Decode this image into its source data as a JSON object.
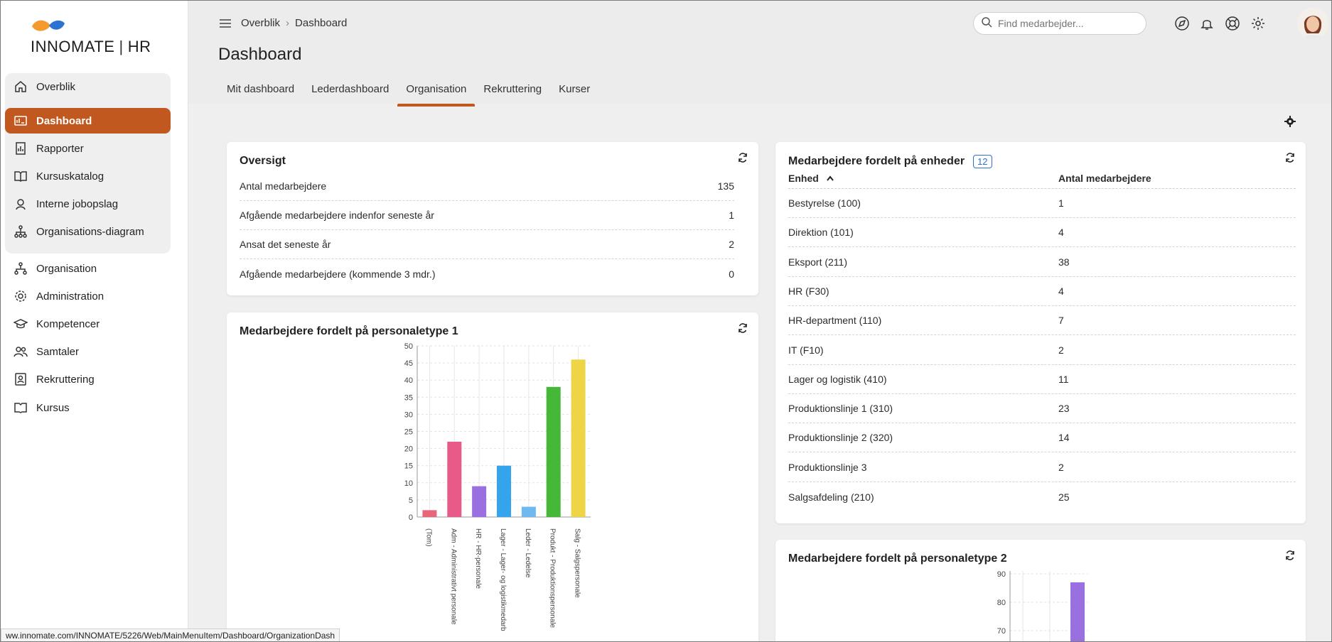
{
  "app": {
    "logo_text_left": "INNOMATE",
    "logo_text_right": "HR",
    "colors": {
      "accent": "#c1581f",
      "logo_orange": "#f59a2e",
      "logo_blue": "#2a73d0",
      "badge_blue": "#2a73d0"
    }
  },
  "sidebar": {
    "items": [
      {
        "label": "Overblik",
        "icon": "home-icon"
      },
      {
        "label": "Dashboard",
        "icon": "dashboard-icon"
      },
      {
        "label": "Rapporter",
        "icon": "report-icon"
      },
      {
        "label": "Kursuskatalog",
        "icon": "book-icon"
      },
      {
        "label": "Interne jobopslag",
        "icon": "job-icon"
      },
      {
        "label": "Organisations-diagram",
        "icon": "org-chart-icon"
      },
      {
        "label": "Organisation",
        "icon": "org-icon"
      },
      {
        "label": "Administration",
        "icon": "gear-icon"
      },
      {
        "label": "Kompetencer",
        "icon": "graduation-cap-icon"
      },
      {
        "label": "Samtaler",
        "icon": "people-icon"
      },
      {
        "label": "Rekruttering",
        "icon": "recruit-icon"
      },
      {
        "label": "Kursus",
        "icon": "course-icon"
      }
    ]
  },
  "header": {
    "breadcrumb": [
      "Overblik",
      "Dashboard"
    ],
    "title": "Dashboard",
    "tabs": [
      {
        "label": "Mit dashboard"
      },
      {
        "label": "Lederdashboard"
      },
      {
        "label": "Organisation"
      },
      {
        "label": "Rekruttering"
      },
      {
        "label": "Kurser"
      }
    ],
    "active_tab": "Organisation",
    "search_placeholder": "Find medarbejder..."
  },
  "overview": {
    "title": "Oversigt",
    "rows": [
      {
        "label": "Antal medarbejdere",
        "value": "135"
      },
      {
        "label": "Afgående medarbejdere indenfor seneste år",
        "value": "1"
      },
      {
        "label": "Ansat det seneste år",
        "value": "2"
      },
      {
        "label": "Afgående medarbejdere (kommende 3 mdr.)",
        "value": "0"
      }
    ]
  },
  "units": {
    "title": "Medarbejdere fordelt på enheder",
    "count": "12",
    "col_unit": "Enhed",
    "col_count": "Antal medarbejdere",
    "rows": [
      {
        "unit": "Bestyrelse (100)",
        "count": "1"
      },
      {
        "unit": "Direktion (101)",
        "count": "4"
      },
      {
        "unit": "Eksport (211)",
        "count": "38"
      },
      {
        "unit": "HR (F30)",
        "count": "4"
      },
      {
        "unit": "HR-department (110)",
        "count": "7"
      },
      {
        "unit": "IT (F10)",
        "count": "2"
      },
      {
        "unit": "Lager og logistik (410)",
        "count": "11"
      },
      {
        "unit": "Produktionslinje 1 (310)",
        "count": "23"
      },
      {
        "unit": "Produktionslinje 2 (320)",
        "count": "14"
      },
      {
        "unit": "Produktionslinje 3",
        "count": "2"
      },
      {
        "unit": "Salgsafdeling (210)",
        "count": "25"
      }
    ]
  },
  "chart_data": [
    {
      "type": "bar",
      "title": "Medarbejdere fordelt på personaletype 1",
      "categories": [
        "(Tom)",
        "Adm - Administrativt personale",
        "HR - HR-personale",
        "Lager - Lager- og logistikmedarb",
        "Leder - Ledelse",
        "Produkt - Produktionspersonale",
        "Salg - Salgspersonale"
      ],
      "values": [
        2,
        22,
        9,
        15,
        3,
        38,
        46
      ],
      "colors": [
        "#e8667a",
        "#e85a88",
        "#9a6fe0",
        "#34a4ec",
        "#6fb8f0",
        "#46b837",
        "#edd546"
      ],
      "ylim": [
        0,
        50
      ],
      "yticks": [
        0,
        5,
        10,
        15,
        20,
        25,
        30,
        35,
        40,
        45,
        50
      ],
      "grid": true
    },
    {
      "type": "bar",
      "title": "Medarbejdere fordelt på personaletype 2",
      "yticks": [
        70,
        80,
        90
      ],
      "visible_values": [
        87
      ],
      "colors": [
        "#9a6fe0"
      ]
    }
  ],
  "status_url": "ww.innomate.com/INNOMATE/5226/Web/MainMenuItem/Dashboard/OrganizationDash"
}
